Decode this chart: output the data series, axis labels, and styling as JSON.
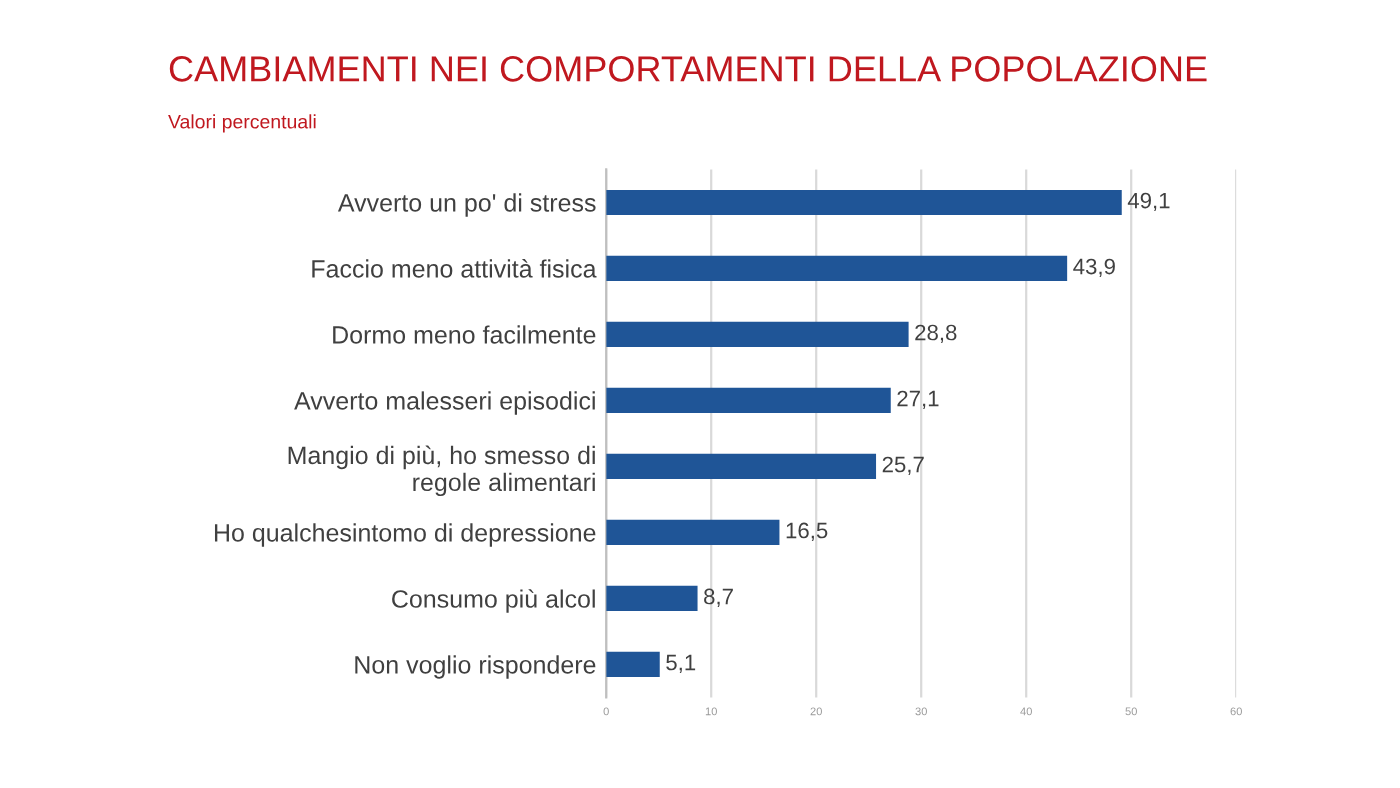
{
  "chart_data": {
    "type": "bar",
    "orientation": "horizontal",
    "title": "CAMBIAMENTI NEI COMPORTAMENTI DELLA POPOLAZIONE",
    "subtitle": "Valori percentuali",
    "categories": [
      "Avverto un po' di stress",
      "Faccio meno attività fisica",
      "Dormo meno facilmente",
      "Avverto malesseri episodici",
      "Mangio di più, ho smesso di regole alimentari",
      "Ho qualchesintomo di depressione",
      "Consumo più alcol",
      "Non voglio rispondere"
    ],
    "values": [
      49.1,
      43.9,
      28.8,
      27.1,
      25.7,
      16.5,
      8.7,
      5.1
    ],
    "value_labels": [
      "49,1",
      "43,9",
      "28,8",
      "27,1",
      "25,7",
      "16,5",
      "8,7",
      "5,1"
    ],
    "color": "#1f5597",
    "xlim": [
      0,
      60
    ],
    "xticks": [
      0,
      10,
      20,
      30,
      40,
      50,
      60
    ],
    "grid": "x"
  }
}
